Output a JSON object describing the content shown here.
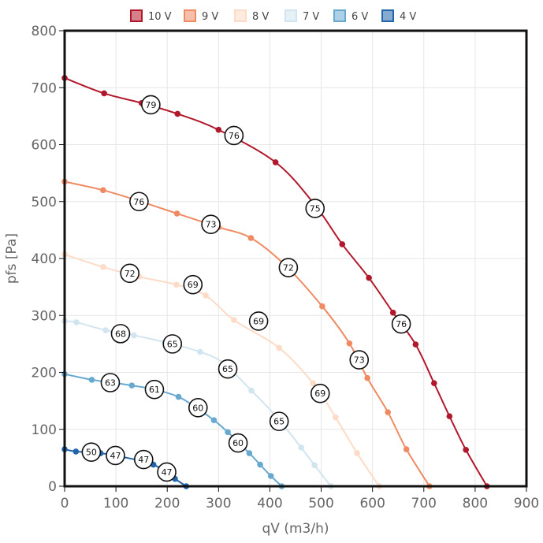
{
  "chart_data": {
    "type": "line",
    "xlabel": "qV (m3/h)",
    "ylabel": "pfs [Pa]",
    "xlim": [
      0,
      900
    ],
    "ylim": [
      0,
      800
    ],
    "x_ticks": [
      "0",
      "100",
      "200",
      "300",
      "400",
      "500",
      "600",
      "700",
      "800",
      "900"
    ],
    "y_ticks": [
      "0",
      "100",
      "200",
      "300",
      "400",
      "500",
      "600",
      "700",
      "800"
    ],
    "grid": true,
    "legend_position": "top-center",
    "series": [
      {
        "name": "10 V",
        "color": "#b2182b",
        "points": [
          [
            0,
            717
          ],
          [
            77,
            690
          ],
          [
            150,
            673
          ],
          [
            220,
            654
          ],
          [
            300,
            626
          ],
          [
            411,
            569
          ],
          [
            487,
            495
          ],
          [
            541,
            425
          ],
          [
            593,
            366
          ],
          [
            640,
            305
          ],
          [
            684,
            249
          ],
          [
            720,
            181
          ],
          [
            750,
            123
          ],
          [
            782,
            64
          ],
          [
            823,
            0
          ]
        ],
        "badges": [
          {
            "x": 168,
            "y": 670,
            "label": "79"
          },
          {
            "x": 330,
            "y": 616,
            "label": "76"
          },
          {
            "x": 488,
            "y": 488,
            "label": "75"
          },
          {
            "x": 656,
            "y": 285,
            "label": "76"
          }
        ]
      },
      {
        "name": "9 V",
        "color": "#ef8a62",
        "points": [
          [
            0,
            535
          ],
          [
            75,
            520
          ],
          [
            145,
            501
          ],
          [
            219,
            479
          ],
          [
            300,
            455
          ],
          [
            363,
            436
          ],
          [
            430,
            388
          ],
          [
            502,
            316
          ],
          [
            555,
            251
          ],
          [
            590,
            190
          ],
          [
            630,
            130
          ],
          [
            666,
            65
          ],
          [
            711,
            0
          ]
        ],
        "badges": [
          {
            "x": 145,
            "y": 500,
            "label": "76"
          },
          {
            "x": 285,
            "y": 460,
            "label": "73"
          },
          {
            "x": 436,
            "y": 384,
            "label": "72"
          },
          {
            "x": 574,
            "y": 222,
            "label": "73"
          }
        ]
      },
      {
        "name": "8 V",
        "color": "#fddbc7",
        "points": [
          [
            0,
            407
          ],
          [
            75,
            385
          ],
          [
            145,
            368
          ],
          [
            218,
            354
          ],
          [
            275,
            335
          ],
          [
            330,
            292
          ],
          [
            418,
            243
          ],
          [
            484,
            181
          ],
          [
            528,
            121
          ],
          [
            570,
            58
          ],
          [
            613,
            0
          ]
        ],
        "badges": [
          {
            "x": 127,
            "y": 374,
            "label": "72"
          },
          {
            "x": 250,
            "y": 354,
            "label": "69"
          },
          {
            "x": 378,
            "y": 290,
            "label": "69"
          },
          {
            "x": 498,
            "y": 163,
            "label": "69"
          }
        ]
      },
      {
        "name": "7 V",
        "color": "#d1e5f0",
        "points": [
          [
            0,
            290
          ],
          [
            23,
            288
          ],
          [
            80,
            274
          ],
          [
            135,
            265
          ],
          [
            195,
            253
          ],
          [
            264,
            236
          ],
          [
            310,
            216
          ],
          [
            364,
            168
          ],
          [
            411,
            124
          ],
          [
            461,
            68
          ],
          [
            487,
            37
          ],
          [
            519,
            0
          ]
        ],
        "badges": [
          {
            "x": 109,
            "y": 268,
            "label": "68"
          },
          {
            "x": 210,
            "y": 250,
            "label": "65"
          },
          {
            "x": 318,
            "y": 206,
            "label": "65"
          },
          {
            "x": 418,
            "y": 114,
            "label": "65"
          }
        ]
      },
      {
        "name": "6 V",
        "color": "#67a9cf",
        "points": [
          [
            0,
            197
          ],
          [
            53,
            187
          ],
          [
            101,
            181
          ],
          [
            131,
            177
          ],
          [
            175,
            170
          ],
          [
            222,
            157
          ],
          [
            260,
            136
          ],
          [
            291,
            116
          ],
          [
            318,
            95
          ],
          [
            360,
            58
          ],
          [
            381,
            38
          ],
          [
            402,
            18
          ],
          [
            423,
            0
          ]
        ],
        "badges": [
          {
            "x": 89,
            "y": 182,
            "label": "63"
          },
          {
            "x": 175,
            "y": 170,
            "label": "61"
          },
          {
            "x": 260,
            "y": 138,
            "label": "60"
          },
          {
            "x": 338,
            "y": 76,
            "label": "60"
          }
        ]
      },
      {
        "name": "4 V",
        "color": "#2166ac",
        "points": [
          [
            0,
            65
          ],
          [
            22,
            61
          ],
          [
            70,
            58
          ],
          [
            110,
            52
          ],
          [
            173,
            38
          ],
          [
            215,
            13
          ],
          [
            237,
            0
          ]
        ],
        "badges": [
          {
            "x": 52,
            "y": 60,
            "label": "50"
          },
          {
            "x": 99,
            "y": 54,
            "label": "47"
          },
          {
            "x": 154,
            "y": 47,
            "label": "47"
          },
          {
            "x": 199,
            "y": 25,
            "label": "47"
          }
        ]
      }
    ]
  }
}
